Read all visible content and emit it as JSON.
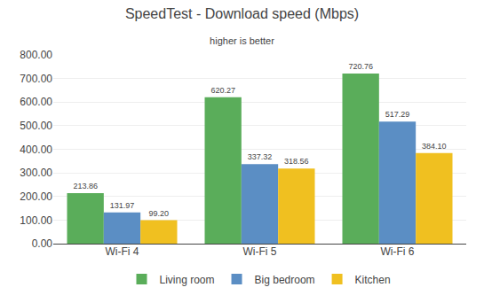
{
  "chart_data": {
    "type": "bar",
    "title": "SpeedTest - Download speed (Mbps)",
    "subtitle": "higher is better",
    "categories": [
      "Wi-Fi 4",
      "Wi-Fi 5",
      "Wi-Fi 6"
    ],
    "series": [
      {
        "name": "Living room",
        "color": "#5aad5a",
        "values": [
          213.86,
          620.27,
          720.76
        ],
        "value_labels": [
          "213.86",
          "620.27",
          "720.76"
        ]
      },
      {
        "name": "Big bedroom",
        "color": "#5b8ec4",
        "values": [
          131.97,
          337.32,
          517.29
        ],
        "value_labels": [
          "131.97",
          "337.32",
          "517.29"
        ]
      },
      {
        "name": "Kitchen",
        "color": "#f0c020",
        "values": [
          99.2,
          318.56,
          384.1
        ],
        "value_labels": [
          "99.20",
          "318.56",
          "384.10"
        ]
      }
    ],
    "ylim": [
      0,
      800
    ],
    "yticks": [
      {
        "value": 0,
        "label": "0.00"
      },
      {
        "value": 100,
        "label": "100.00"
      },
      {
        "value": 200,
        "label": "200.00"
      },
      {
        "value": 300,
        "label": "300.00"
      },
      {
        "value": 400,
        "label": "400.00"
      },
      {
        "value": 500,
        "label": "500.00"
      },
      {
        "value": 600,
        "label": "600.00"
      },
      {
        "value": 700,
        "label": "700.00"
      },
      {
        "value": 800,
        "label": "800.00"
      }
    ],
    "grid": true,
    "legend": "bottom",
    "data_labels": true
  }
}
